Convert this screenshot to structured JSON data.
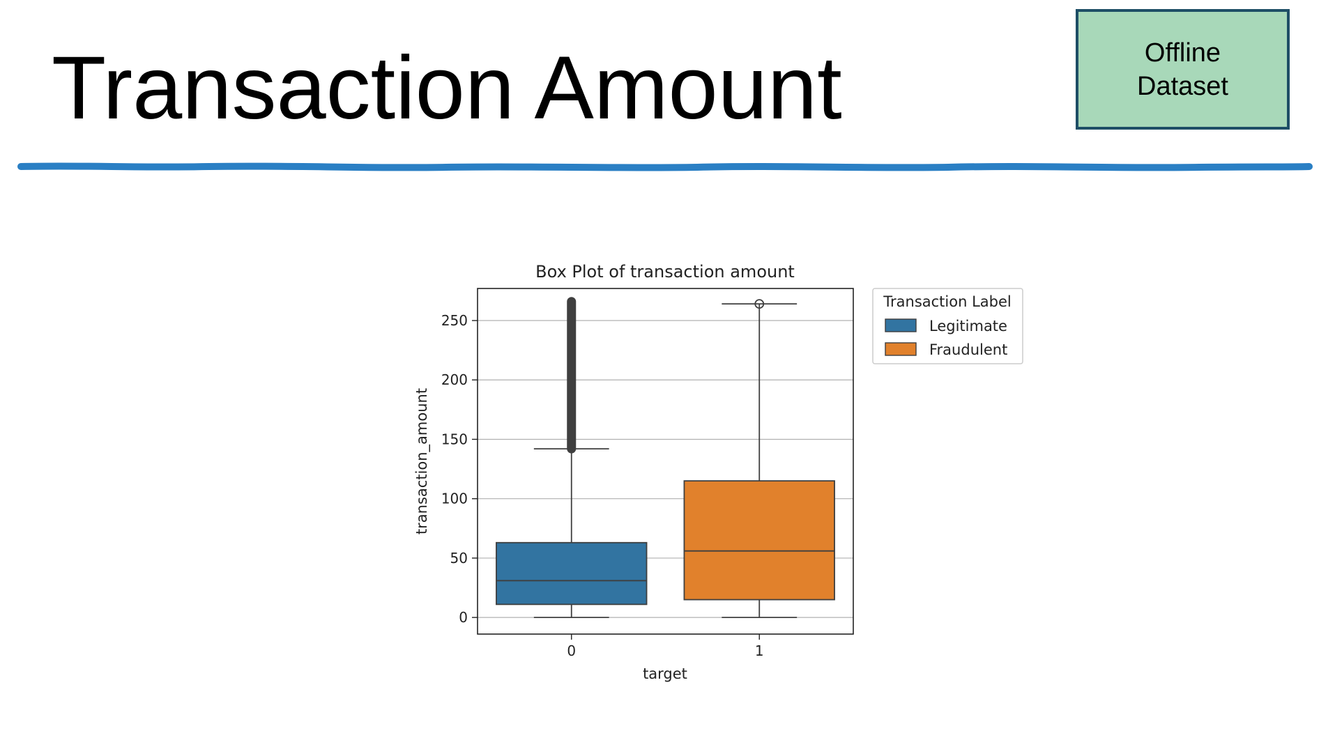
{
  "slide": {
    "title": "Transaction Amount",
    "badge_line1": "Offline",
    "badge_line2": "Dataset",
    "badge_color": "#a8d8b9",
    "badge_border_color": "#1e4e66",
    "divider_color": "#2a7fc4"
  },
  "chart_data": {
    "type": "box",
    "title": "Box Plot of transaction amount",
    "xlabel": "target",
    "ylabel": "transaction_amount",
    "categories": [
      "0",
      "1"
    ],
    "ylim": [
      -14,
      277
    ],
    "yticks": [
      0,
      50,
      100,
      150,
      200,
      250
    ],
    "grid": true,
    "legend": {
      "title": "Transaction Label",
      "placement": "outside-right-top",
      "entries": [
        "Legitimate",
        "Fraudulent"
      ]
    },
    "series": [
      {
        "name": "Legitimate",
        "category": "0",
        "color": "#3274a1",
        "whisker_low": 0,
        "q1": 11,
        "median": 31,
        "q3": 63,
        "whisker_high": 142,
        "outliers_range": [
          142,
          266
        ]
      },
      {
        "name": "Fraudulent",
        "category": "1",
        "color": "#e1812c",
        "whisker_low": 0,
        "q1": 15,
        "median": 56,
        "q3": 115,
        "whisker_high": 264,
        "outliers": [
          264
        ]
      }
    ]
  }
}
